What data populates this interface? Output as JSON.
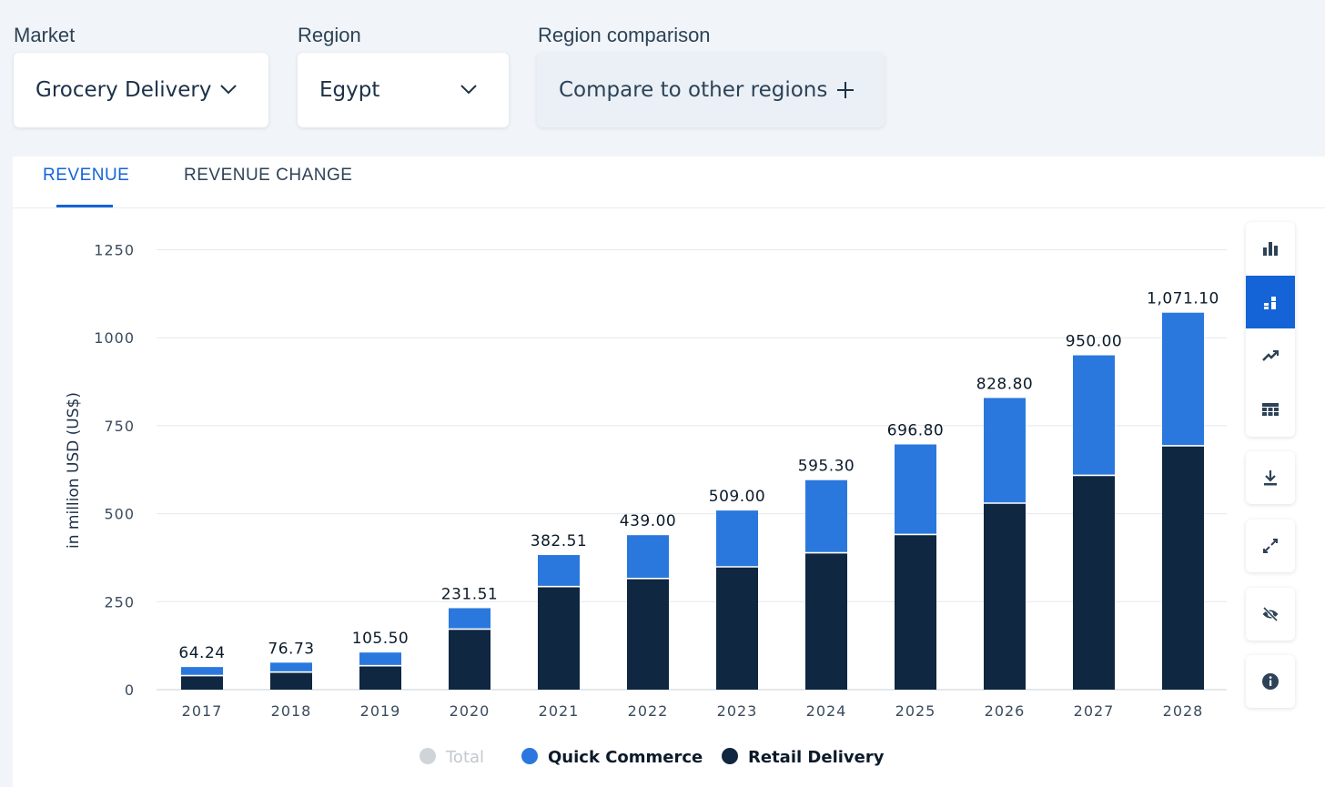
{
  "filters": {
    "market": {
      "label": "Market",
      "value": "Grocery Delivery"
    },
    "region": {
      "label": "Region",
      "value": "Egypt"
    },
    "comparison": {
      "label": "Region comparison",
      "value": "Compare to other regions"
    }
  },
  "tabs": [
    {
      "label": "REVENUE",
      "active": true
    },
    {
      "label": "REVENUE CHANGE",
      "active": false
    }
  ],
  "toolbar": [
    {
      "icon": "bar-chart-icon",
      "active": false
    },
    {
      "icon": "stacked-chart-icon",
      "active": true
    },
    {
      "icon": "trend-line-icon",
      "active": false
    },
    {
      "icon": "table-icon",
      "active": false
    },
    {
      "icon": "download-icon",
      "active": false
    },
    {
      "icon": "expand-icon",
      "active": false
    },
    {
      "icon": "hide-icon",
      "active": false
    },
    {
      "icon": "info-icon",
      "active": false
    }
  ],
  "colors": {
    "quick_commerce": "#2a78dd",
    "retail_delivery": "#0f2740",
    "total_disabled": "#cfd4d9",
    "accent": "#1464d8"
  },
  "chart_data": {
    "type": "bar",
    "stacked": true,
    "ylabel": "in million USD (US$)",
    "ylim": [
      0,
      1250
    ],
    "yticks": [
      0,
      250,
      500,
      750,
      1000,
      1250
    ],
    "categories": [
      "2017",
      "2018",
      "2019",
      "2020",
      "2021",
      "2022",
      "2023",
      "2024",
      "2025",
      "2026",
      "2027",
      "2028"
    ],
    "series": [
      {
        "name": "Retail Delivery",
        "values": [
          40,
          50,
          68,
          172,
          293,
          316,
          349,
          389,
          441,
          530,
          609,
          693
        ]
      },
      {
        "name": "Quick Commerce",
        "values": [
          24.24,
          26.73,
          37.5,
          59.51,
          89.51,
          123,
          160,
          206.3,
          255.8,
          298.8,
          341,
          378.1
        ]
      }
    ],
    "totals": [
      "64.24",
      "76.73",
      "105.50",
      "231.51",
      "382.51",
      "439.00",
      "509.00",
      "595.30",
      "696.80",
      "828.80",
      "950.00",
      "1,071.10"
    ],
    "legend": [
      {
        "name": "Total",
        "enabled": false
      },
      {
        "name": "Quick Commerce",
        "enabled": true
      },
      {
        "name": "Retail Delivery",
        "enabled": true
      }
    ],
    "legend_position": "bottom",
    "grid": true
  }
}
